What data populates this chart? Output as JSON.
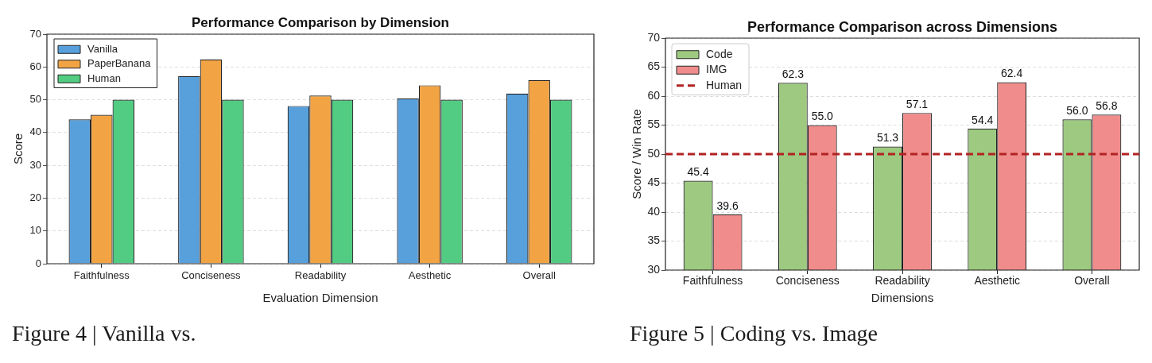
{
  "chart_data": [
    {
      "type": "bar",
      "title": "Performance Comparison by Dimension",
      "xlabel": "Evaluation Dimension",
      "ylabel": "Score",
      "categories": [
        "Faithfulness",
        "Conciseness",
        "Readability",
        "Aesthetic",
        "Overall"
      ],
      "series": [
        {
          "name": "Vanilla",
          "color": "#58a0dc",
          "values": [
            44.0,
            57.2,
            48.1,
            50.4,
            51.9
          ]
        },
        {
          "name": "PaperBanana",
          "color": "#f2a444",
          "values": [
            45.4,
            62.3,
            51.3,
            54.4,
            56.0
          ]
        },
        {
          "name": "Human",
          "color": "#52cc82",
          "values": [
            50,
            50,
            50,
            50,
            50
          ]
        }
      ],
      "ylim": [
        0,
        70
      ],
      "yticks": [
        0,
        10,
        20,
        30,
        40,
        50,
        60,
        70
      ],
      "grid": "y",
      "legend": "top left",
      "annotations": [
        "Figure 4 | Vanilla vs."
      ]
    },
    {
      "type": "bar",
      "title": "Performance Comparison across Dimensions",
      "xlabel": "Dimensions",
      "ylabel": "Score / Win Rate",
      "categories": [
        "Faithfulness",
        "Conciseness",
        "Readability",
        "Aesthetic",
        "Overall"
      ],
      "series": [
        {
          "name": "Code",
          "color": "#9dca80",
          "values": [
            45.4,
            62.3,
            51.3,
            54.4,
            56.0
          ],
          "value_labels": [
            "45.4",
            "62.3",
            "51.3",
            "54.4",
            "56.0"
          ]
        },
        {
          "name": "IMG",
          "color": "#f08c8c",
          "values": [
            39.6,
            55.0,
            57.1,
            62.4,
            56.8
          ],
          "value_labels": [
            "39.6",
            "55.0",
            "57.1",
            "62.4",
            "56.8"
          ]
        }
      ],
      "ylim": [
        30,
        70
      ],
      "yticks": [
        30,
        35,
        40,
        45,
        50,
        55,
        60,
        65,
        70
      ],
      "grid": "y",
      "legend": "top left",
      "ref_lines": [
        {
          "axis": "y",
          "value": 50,
          "label": "Human",
          "color": "#b22222",
          "line_style": "dashed"
        }
      ],
      "annotations": [
        "Figure 5 | Coding vs. Image"
      ]
    }
  ]
}
